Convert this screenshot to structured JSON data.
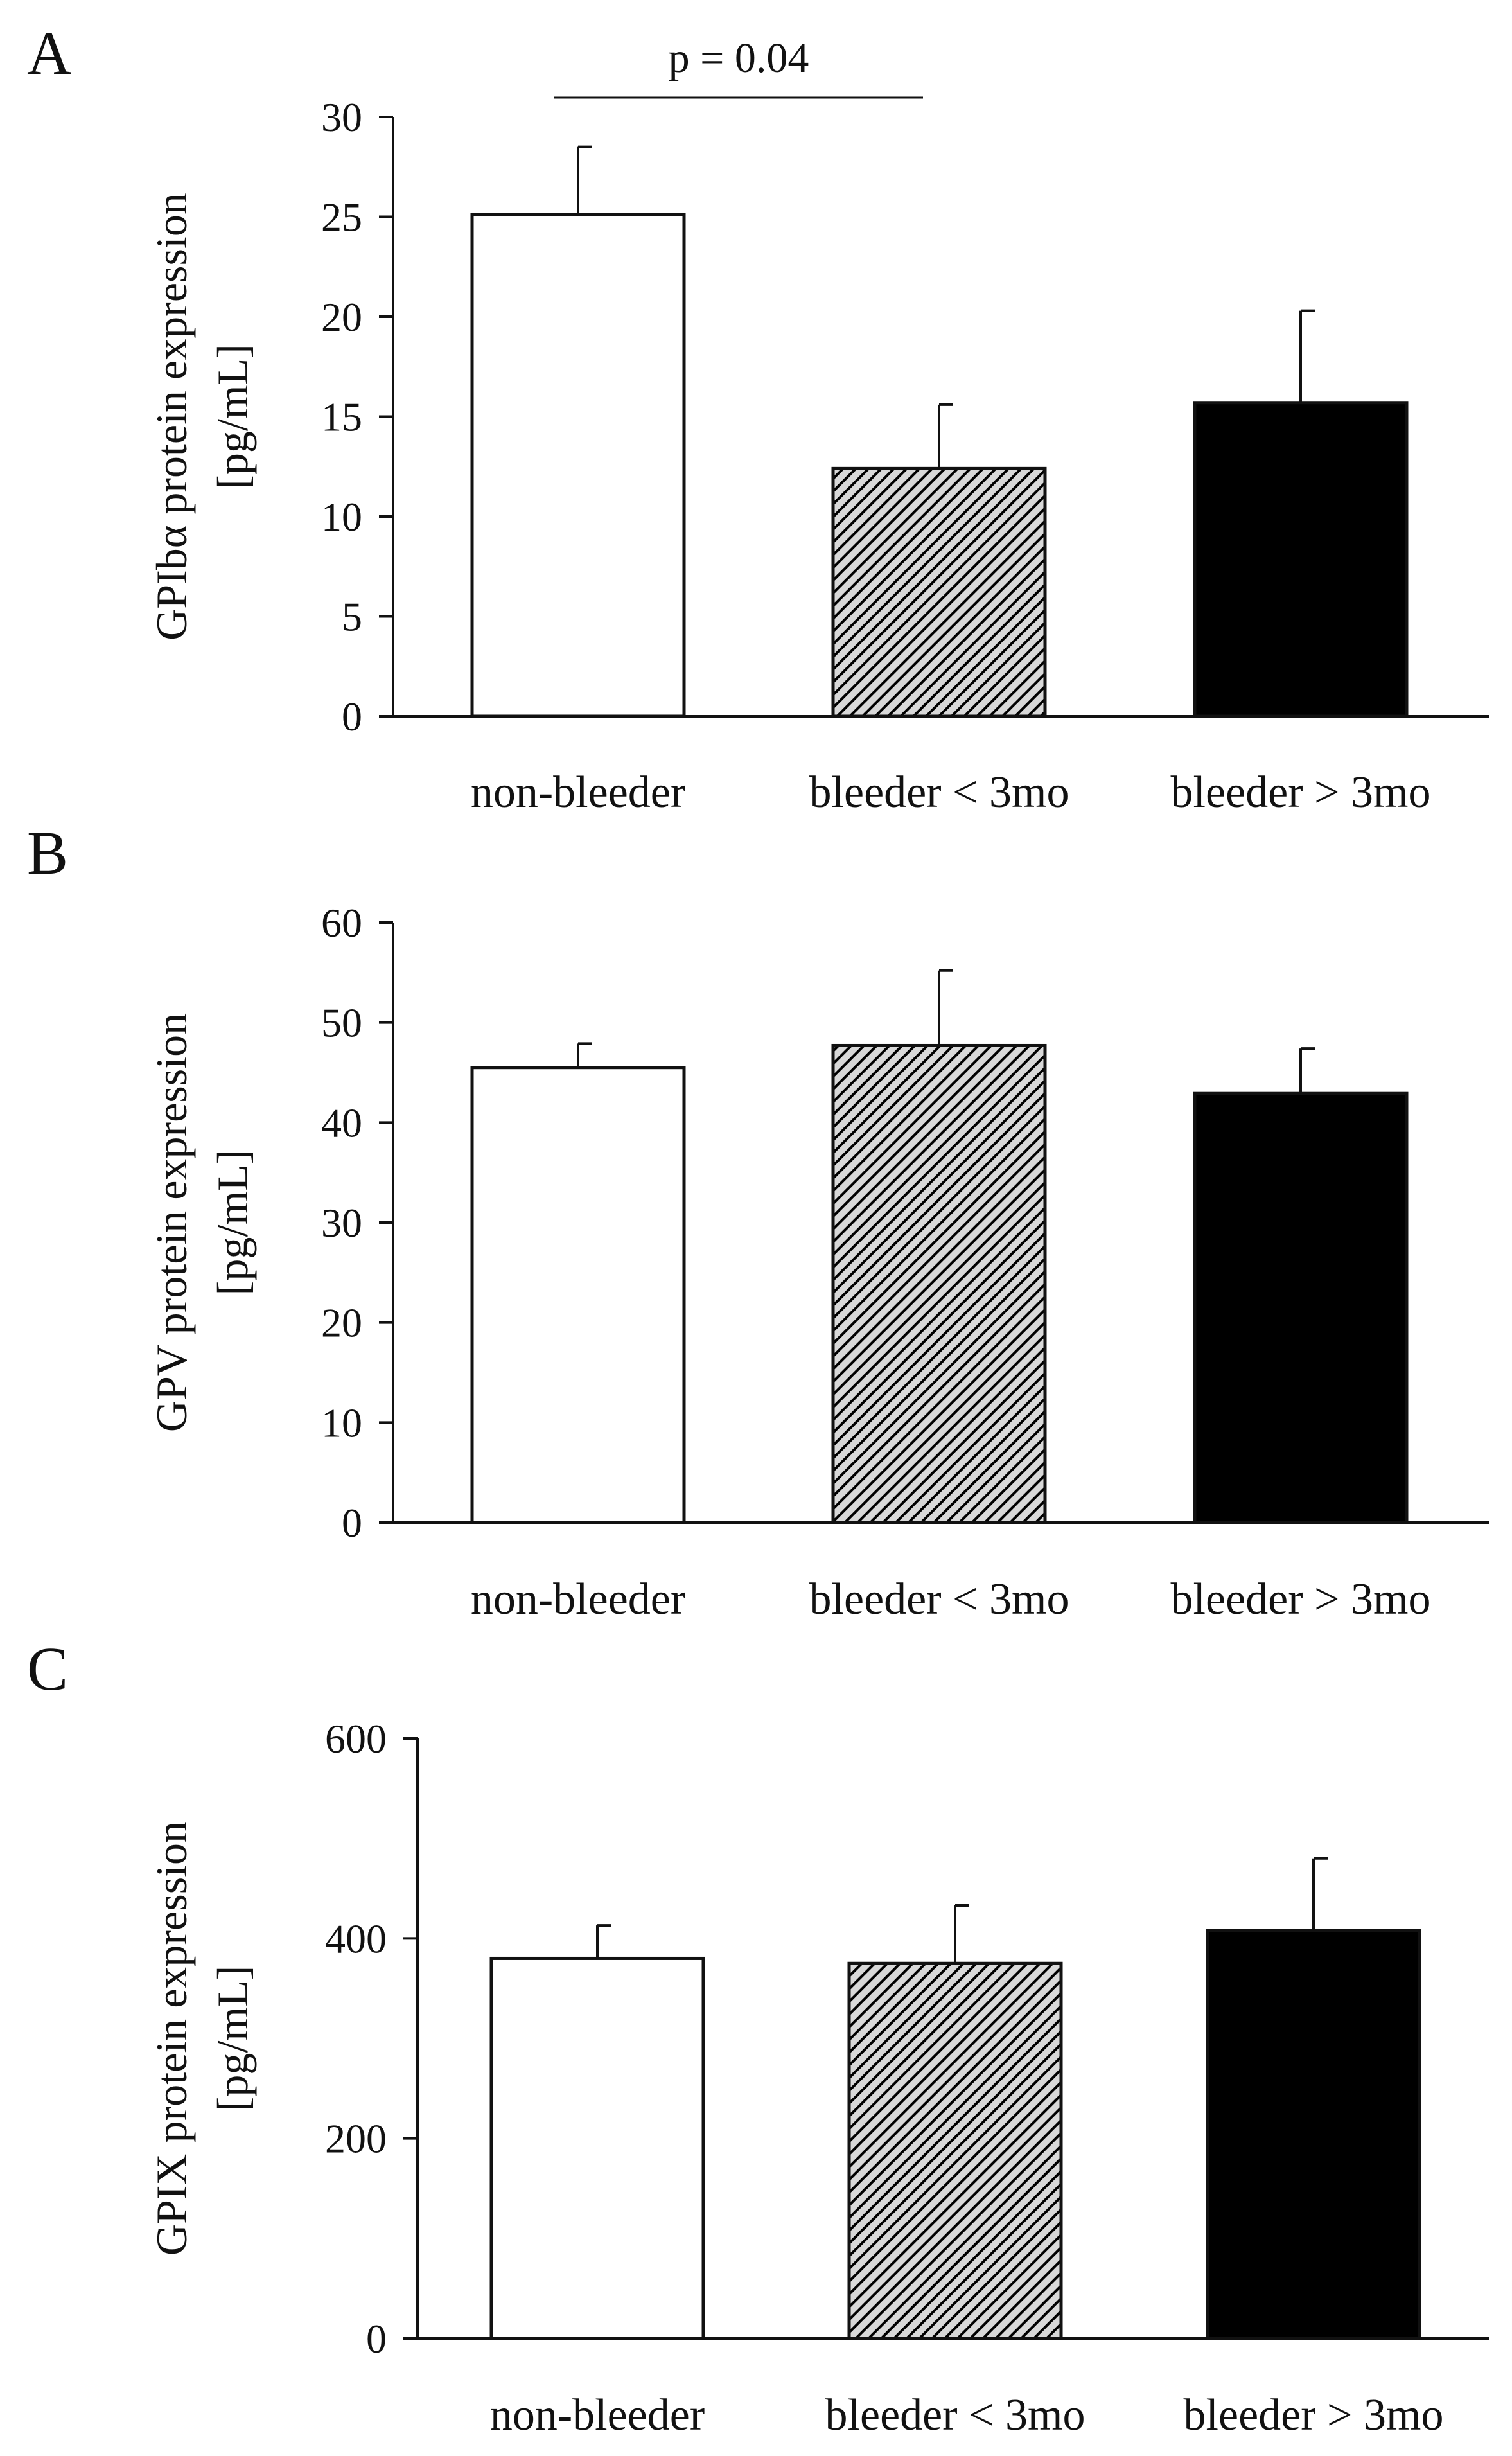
{
  "chart_data": [
    {
      "panel": "A",
      "type": "bar",
      "categories": [
        "non-bleeder",
        "bleeder < 3mo",
        "bleeder > 3mo"
      ],
      "values": [
        25.1,
        12.4,
        15.7
      ],
      "errors": [
        3.4,
        3.2,
        4.6
      ],
      "ylabel_line1": "GPIbα protein expression",
      "ylabel_line2": "[pg/mL]",
      "ylim": [
        0,
        30
      ],
      "ticks": [
        0,
        5,
        10,
        15,
        20,
        25,
        30
      ],
      "fills": [
        "white",
        "hatch",
        "black"
      ],
      "annotation": {
        "text": "p = 0.04",
        "between": [
          0,
          1
        ]
      }
    },
    {
      "panel": "B",
      "type": "bar",
      "categories": [
        "non-bleeder",
        "bleeder < 3mo",
        "bleeder > 3mo"
      ],
      "values": [
        45.5,
        47.7,
        42.9
      ],
      "errors": [
        2.4,
        7.5,
        4.5
      ],
      "ylabel_line1": "GPV protein expression",
      "ylabel_line2": "[pg/mL]",
      "ylim": [
        0,
        60
      ],
      "ticks": [
        0,
        10,
        20,
        30,
        40,
        50,
        60
      ],
      "fills": [
        "white",
        "hatch",
        "black"
      ]
    },
    {
      "panel": "C",
      "type": "bar",
      "categories": [
        "non-bleeder",
        "bleeder < 3mo",
        "bleeder > 3mo"
      ],
      "values": [
        380,
        375,
        408
      ],
      "errors": [
        33,
        58,
        72
      ],
      "ylabel_line1": "GPIX protein expression",
      "ylabel_line2": "[pg/mL]",
      "ylim": [
        0,
        600
      ],
      "ticks": [
        0,
        200,
        400,
        600
      ],
      "fills": [
        "white",
        "hatch",
        "black"
      ]
    }
  ],
  "colors": {
    "ink": "#111111",
    "white_bar": "#ffffff",
    "black_bar": "#000000",
    "hatch_bg": "#d8d8d8"
  }
}
